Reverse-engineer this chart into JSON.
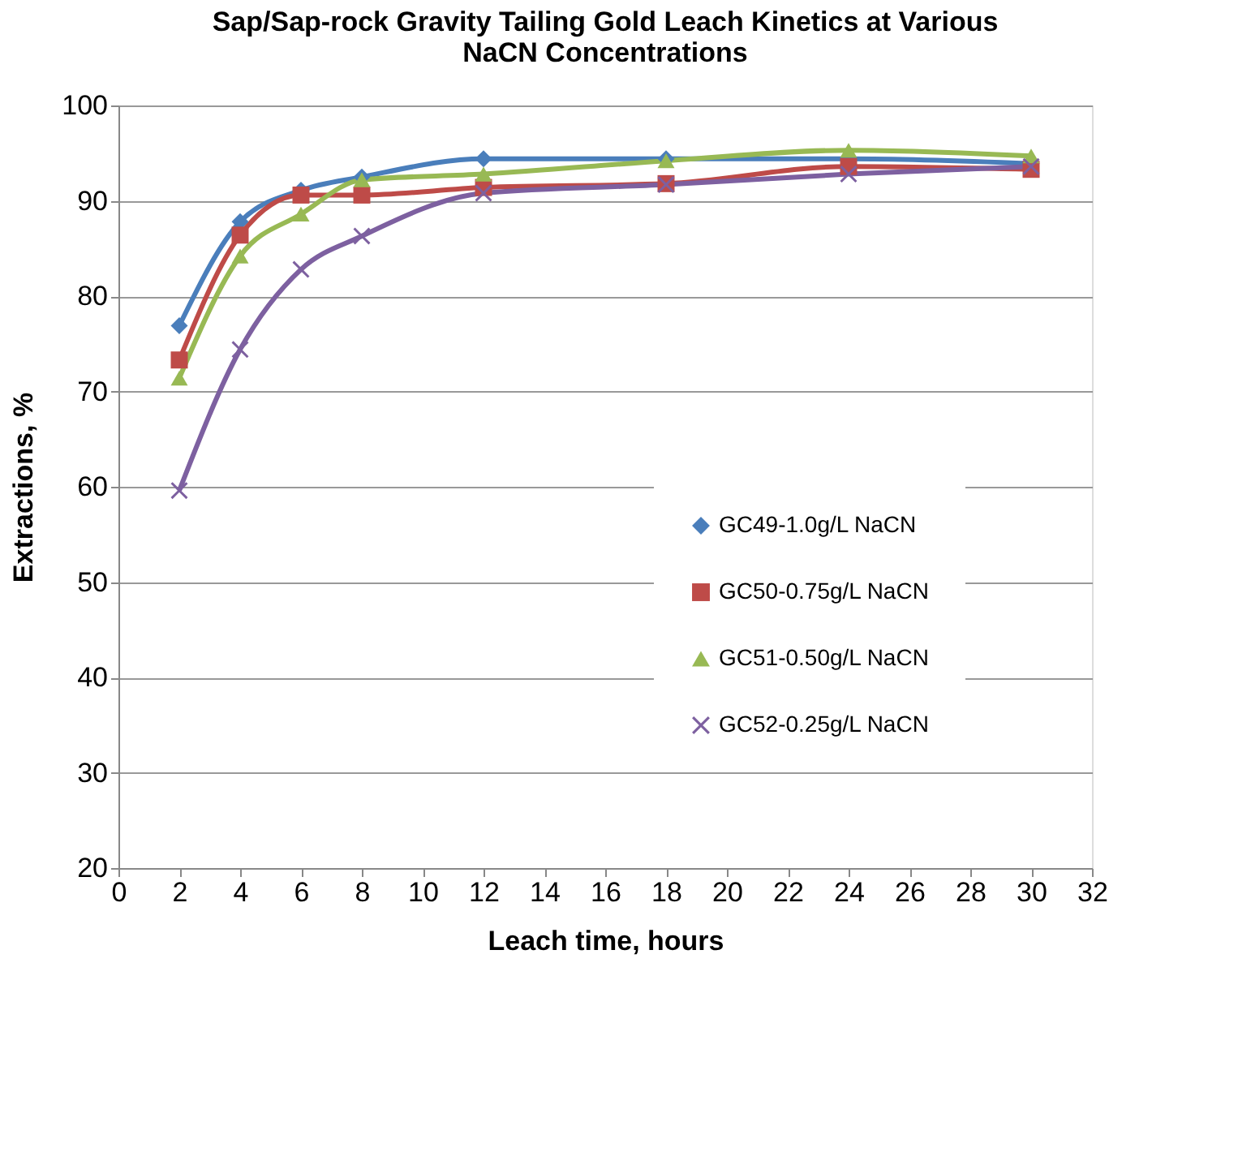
{
  "chart_data": {
    "type": "line",
    "title": "Sap/Sap-rock Gravity Tailing Gold Leach Kinetics at Various NaCN Concentrations",
    "xlabel": "Leach time, hours",
    "ylabel": "Extractions, %",
    "x": [
      2,
      4,
      6,
      8,
      12,
      18,
      24,
      30
    ],
    "series": [
      {
        "name": "GC49-1.0g/L NaCN",
        "color": "#4a7ebb",
        "marker": "diamond",
        "values": [
          76.9,
          87.8,
          91.1,
          92.5,
          94.4,
          94.4,
          94.4,
          93.9
        ]
      },
      {
        "name": "GC50-0.75g/L NaCN",
        "color": "#be4b48",
        "marker": "square",
        "values": [
          73.3,
          86.4,
          90.6,
          90.6,
          91.4,
          91.8,
          93.6,
          93.3
        ]
      },
      {
        "name": "GC51-0.50g/L NaCN",
        "color": "#98b954",
        "marker": "triangle",
        "values": [
          71.4,
          84.2,
          88.6,
          92.2,
          92.8,
          94.2,
          95.3,
          94.7
        ]
      },
      {
        "name": "GC52-0.25g/L NaCN",
        "color": "#7d60a0",
        "marker": "cross",
        "values": [
          59.6,
          74.4,
          82.8,
          86.3,
          90.8,
          91.7,
          92.8,
          93.6
        ]
      }
    ],
    "xlim": [
      0,
      32
    ],
    "xticks": [
      0,
      2,
      4,
      6,
      8,
      10,
      12,
      14,
      16,
      18,
      20,
      22,
      24,
      26,
      28,
      30,
      32
    ],
    "ylim": [
      20,
      100
    ],
    "yticks": [
      20,
      30,
      40,
      50,
      60,
      70,
      80,
      90,
      100
    ],
    "grid": "y",
    "legend": "bottom right",
    "line_style": "solid"
  }
}
